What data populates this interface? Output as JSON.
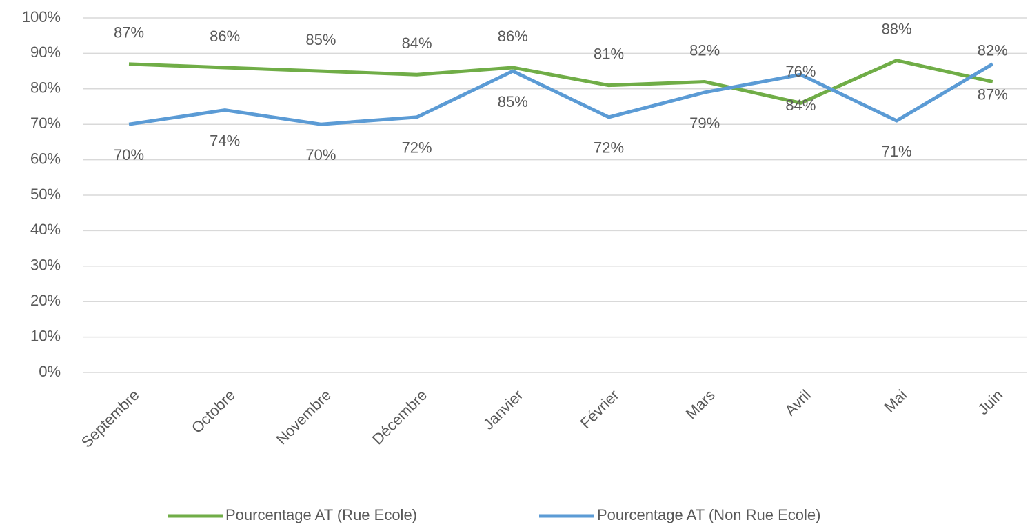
{
  "chart_data": {
    "type": "line",
    "categories": [
      "Septembre",
      "Octobre",
      "Novembre",
      "Décembre",
      "Janvier",
      "Février",
      "Mars",
      "Avril",
      "Mai",
      "Juin"
    ],
    "series": [
      {
        "name": "Pourcentage AT (Rue Ecole)",
        "color": "#70ad47",
        "values": [
          87,
          86,
          85,
          84,
          86,
          81,
          82,
          76,
          88,
          82
        ],
        "value_labels": [
          "87%",
          "86%",
          "85%",
          "84%",
          "86%",
          "81%",
          "82%",
          "76%",
          "88%",
          "82%"
        ]
      },
      {
        "name": "Pourcentage AT (Non Rue Ecole)",
        "color": "#5b9bd5",
        "values": [
          70,
          74,
          70,
          72,
          85,
          72,
          79,
          84,
          71,
          87
        ],
        "value_labels": [
          "70%",
          "74%",
          "70%",
          "72%",
          "85%",
          "72%",
          "79%",
          "84%",
          "71%",
          "87%"
        ]
      }
    ],
    "ylim": [
      0,
      100
    ],
    "yticks": [
      {
        "value": 0,
        "label": "0%"
      },
      {
        "value": 10,
        "label": "10%"
      },
      {
        "value": 20,
        "label": "20%"
      },
      {
        "value": 30,
        "label": "30%"
      },
      {
        "value": 40,
        "label": "40%"
      },
      {
        "value": 50,
        "label": "50%"
      },
      {
        "value": 60,
        "label": "60%"
      },
      {
        "value": 70,
        "label": "70%"
      },
      {
        "value": 80,
        "label": "80%"
      },
      {
        "value": 90,
        "label": "90%"
      },
      {
        "value": 100,
        "label": "100%"
      }
    ],
    "grid": true,
    "legend": "bottom"
  }
}
